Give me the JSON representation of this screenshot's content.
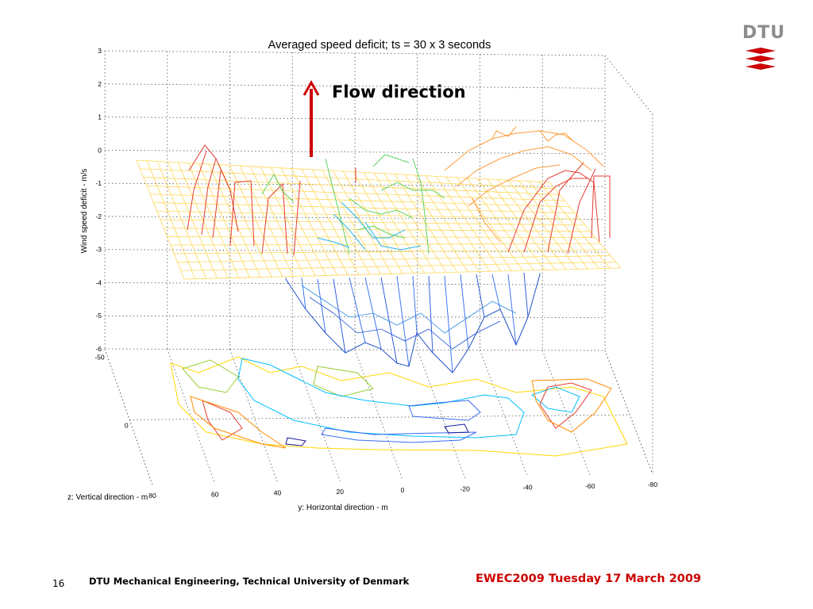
{
  "chart_data": {
    "type": "surface",
    "title": "Averaged speed deficit; ts = 30 x 3 seconds",
    "zlabel": "Wind speed deficit - m/s",
    "xlabel": "y: Horizontal direction - m",
    "ylabel": "z: Vertical direction - m",
    "zticks": [
      "3",
      "2",
      "1",
      "0",
      "-1",
      "-2",
      "-3",
      "-4",
      "-5",
      "-6"
    ],
    "yticks": [
      "80",
      "60",
      "40",
      "20",
      "0",
      "-20",
      "-40",
      "-60",
      "-80"
    ],
    "zdepth_ticks": [
      "-50",
      "0"
    ],
    "zlim": [
      -6,
      3
    ],
    "ylim": [
      -80,
      80
    ],
    "grid": true
  },
  "annotation": {
    "label": "Flow direction",
    "color": "#cc0000"
  },
  "logo": {
    "text": "DTU",
    "color": "#cc0000"
  },
  "footer": {
    "page_number": "16",
    "organization": "DTU Mechanical Engineering, Technical University of Denmark",
    "event": "EWEC2009 Tuesday 17 March 2009"
  }
}
